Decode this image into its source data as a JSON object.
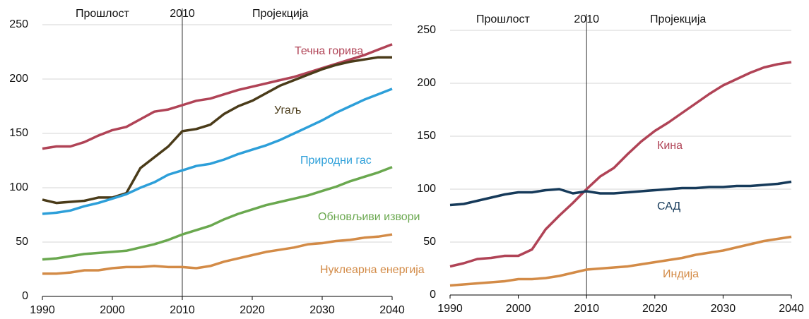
{
  "chart_data": [
    {
      "type": "line",
      "xlim": [
        1990,
        2040
      ],
      "xticks": [
        1990,
        2000,
        2010,
        2020,
        2030,
        2040
      ],
      "ylim": [
        0,
        250
      ],
      "yticks": [
        0,
        50,
        100,
        150,
        200,
        250
      ],
      "grid": true,
      "left_label": "Прошлост",
      "right_label": "Пројекција",
      "divider": {
        "x": 2010,
        "label": "2010"
      },
      "x": [
        1990,
        1992,
        1994,
        1996,
        1998,
        2000,
        2002,
        2004,
        2006,
        2008,
        2010,
        2012,
        2014,
        2016,
        2018,
        2020,
        2022,
        2024,
        2026,
        2028,
        2030,
        2032,
        2034,
        2036,
        2038,
        2040
      ],
      "series": [
        {
          "name": "Течна горива",
          "color": "#b04356",
          "values": [
            136,
            138,
            138,
            142,
            148,
            153,
            156,
            163,
            170,
            172,
            176,
            180,
            182,
            186,
            190,
            193,
            196,
            199,
            202,
            206,
            210,
            214,
            218,
            222,
            227,
            232
          ]
        },
        {
          "name": "Угаљ",
          "color": "#4a3b19",
          "values": [
            89,
            86,
            87,
            88,
            91,
            91,
            95,
            118,
            128,
            138,
            152,
            154,
            158,
            168,
            175,
            180,
            187,
            194,
            199,
            204,
            209,
            213,
            216,
            218,
            220,
            220
          ]
        },
        {
          "name": "Природни гас",
          "color": "#2d9fd9",
          "values": [
            76,
            77,
            79,
            83,
            86,
            90,
            94,
            100,
            105,
            112,
            116,
            120,
            122,
            126,
            131,
            135,
            139,
            144,
            150,
            156,
            162,
            169,
            175,
            181,
            186,
            191
          ]
        },
        {
          "name": "Обновљиви извори",
          "color": "#6aa84f",
          "values": [
            34,
            35,
            37,
            39,
            40,
            41,
            42,
            45,
            48,
            52,
            57,
            61,
            65,
            71,
            76,
            80,
            84,
            87,
            90,
            93,
            97,
            101,
            106,
            110,
            114,
            119
          ]
        },
        {
          "name": "Нуклеарна енергија",
          "color": "#d38b47",
          "values": [
            21,
            21,
            22,
            24,
            24,
            26,
            27,
            27,
            28,
            27,
            27,
            26,
            28,
            32,
            35,
            38,
            41,
            43,
            45,
            48,
            49,
            51,
            52,
            54,
            55,
            57
          ]
        }
      ]
    },
    {
      "type": "line",
      "xlim": [
        1990,
        2040
      ],
      "xticks": [
        1990,
        2000,
        2010,
        2020,
        2030,
        2040
      ],
      "ylim": [
        0,
        250
      ],
      "yticks": [
        0,
        50,
        100,
        150,
        200,
        250
      ],
      "grid": true,
      "left_label": "Прошлост",
      "right_label": "Пројекција",
      "divider": {
        "x": 2010,
        "label": "2010"
      },
      "x": [
        1990,
        1992,
        1994,
        1996,
        1998,
        2000,
        2002,
        2004,
        2006,
        2008,
        2010,
        2012,
        2014,
        2016,
        2018,
        2020,
        2022,
        2024,
        2026,
        2028,
        2030,
        2032,
        2034,
        2036,
        2038,
        2040
      ],
      "series": [
        {
          "name": "Кина",
          "color": "#b04356",
          "values": [
            27,
            30,
            34,
            35,
            37,
            37,
            43,
            62,
            75,
            87,
            100,
            112,
            120,
            133,
            145,
            155,
            163,
            172,
            181,
            190,
            198,
            204,
            210,
            215,
            218,
            220
          ]
        },
        {
          "name": "САД",
          "color": "#163a5a",
          "values": [
            85,
            86,
            89,
            92,
            95,
            97,
            97,
            99,
            100,
            96,
            98,
            96,
            96,
            97,
            98,
            99,
            100,
            101,
            101,
            102,
            102,
            103,
            103,
            104,
            105,
            107
          ]
        },
        {
          "name": "Индија",
          "color": "#d38b47",
          "values": [
            9,
            10,
            11,
            12,
            13,
            15,
            15,
            16,
            18,
            21,
            24,
            25,
            26,
            27,
            29,
            31,
            33,
            35,
            38,
            40,
            42,
            45,
            48,
            51,
            53,
            55
          ]
        }
      ]
    }
  ]
}
